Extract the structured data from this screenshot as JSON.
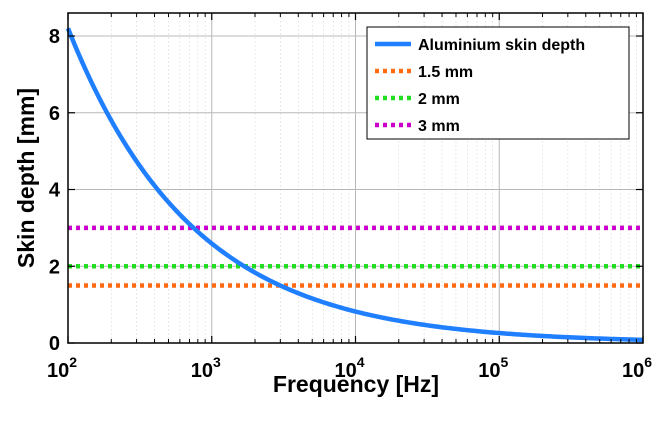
{
  "chart_data": {
    "type": "line",
    "title": "",
    "xlabel": "Frequency [Hz]",
    "ylabel": "Skin depth [mm]",
    "xscale": "log",
    "xlim": [
      100,
      1000000
    ],
    "ylim": [
      0,
      8.6
    ],
    "grid": true,
    "legend_position": "top-right",
    "x_ticks": [
      {
        "base": "10",
        "exp": "2",
        "value": 100
      },
      {
        "base": "10",
        "exp": "3",
        "value": 1000
      },
      {
        "base": "10",
        "exp": "4",
        "value": 10000
      },
      {
        "base": "10",
        "exp": "5",
        "value": 100000
      },
      {
        "base": "10",
        "exp": "6",
        "value": 1000000
      }
    ],
    "y_ticks": [
      {
        "label": "0",
        "value": 0
      },
      {
        "label": "2",
        "value": 2
      },
      {
        "label": "4",
        "value": 4
      },
      {
        "label": "6",
        "value": 6
      },
      {
        "label": "8",
        "value": 8
      }
    ],
    "series": [
      {
        "name": "Aluminium skin depth",
        "style": "solid",
        "color": "#1f7fff",
        "x": [
          100,
          200,
          500,
          1000,
          2000,
          5000,
          10000,
          20000,
          50000,
          100000,
          200000,
          500000,
          1000000
        ],
        "y": [
          8.2,
          5.8,
          3.67,
          2.6,
          1.83,
          1.16,
          0.82,
          0.58,
          0.37,
          0.26,
          0.18,
          0.12,
          0.08
        ]
      },
      {
        "name": "1.5 mm",
        "style": "dotted",
        "color": "#ff6a13",
        "x": [
          100,
          1000000
        ],
        "y": [
          1.5,
          1.5
        ]
      },
      {
        "name": "2 mm",
        "style": "dotted",
        "color": "#22dd22",
        "x": [
          100,
          1000000
        ],
        "y": [
          2,
          2
        ]
      },
      {
        "name": "3 mm",
        "style": "dotted",
        "color": "#cc00cc",
        "x": [
          100,
          1000000
        ],
        "y": [
          3,
          3
        ]
      }
    ]
  }
}
